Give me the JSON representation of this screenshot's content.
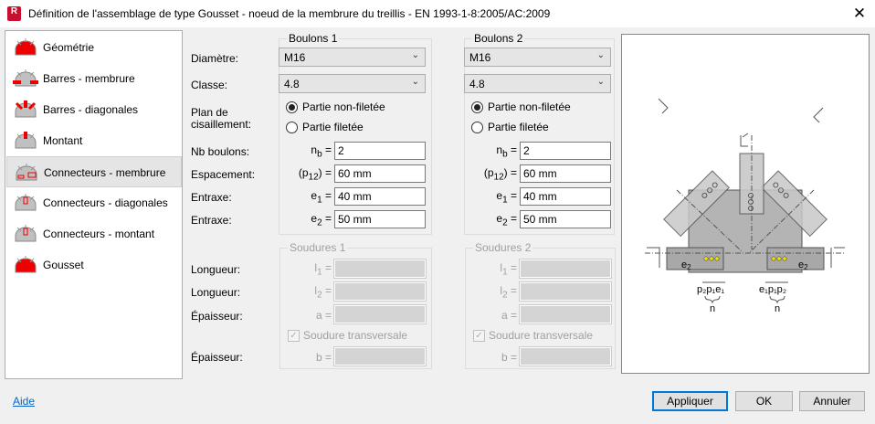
{
  "window": {
    "title": "Définition de l'assemblage de type Gousset - noeud de la membrure du treillis - EN 1993-1-8:2005/AC:2009",
    "app_icon_letter": "R",
    "close_label": "✕"
  },
  "nav": {
    "selected_index": 4,
    "items": [
      {
        "label": "Géométrie",
        "icon": "gusset-geometry-icon"
      },
      {
        "label": "Barres - membrure",
        "icon": "chord-bars-icon"
      },
      {
        "label": "Barres - diagonales",
        "icon": "diagonal-bars-icon"
      },
      {
        "label": "Montant",
        "icon": "vertical-member-icon"
      },
      {
        "label": "Connecteurs - membrure",
        "icon": "chord-connectors-icon"
      },
      {
        "label": "Connecteurs - diagonales",
        "icon": "diagonal-connectors-icon"
      },
      {
        "label": "Connecteurs - montant",
        "icon": "vertical-connectors-icon"
      },
      {
        "label": "Gousset",
        "icon": "gusset-plate-icon"
      }
    ]
  },
  "labels": {
    "diametre": "Diamètre:",
    "classe": "Classe:",
    "plan": "Plan de",
    "cisaillement": "cisaillement:",
    "nb": "Nb boulons:",
    "espacement": "Espacement:",
    "entraxe1": "Entraxe:",
    "entraxe2": "Entraxe:",
    "longueur1": "Longueur:",
    "longueur2": "Longueur:",
    "epaisseur1": "Épaisseur:",
    "epaisseur2": "Épaisseur:"
  },
  "bolts": [
    {
      "title": "Boulons 1",
      "diameter": "M16",
      "class": "4.8",
      "shear_options": [
        "Partie non-filetée",
        "Partie filetée"
      ],
      "shear_selected": 0,
      "nb": "2",
      "spacing": "60 mm",
      "e1": "40 mm",
      "e2": "50 mm"
    },
    {
      "title": "Boulons 2",
      "diameter": "M16",
      "class": "4.8",
      "shear_options": [
        "Partie non-filetée",
        "Partie filetée"
      ],
      "shear_selected": 0,
      "nb": "2",
      "spacing": "60 mm",
      "e1": "40 mm",
      "e2": "50 mm"
    }
  ],
  "symbols": {
    "nb": "n",
    "nb_sub": "b",
    "p": "(p",
    "p1": "1",
    ".p": " .p",
    "p2": "2",
    ")": ") =",
    "e": "e",
    "e1": "1",
    "e2": "2",
    "eq": "=",
    "l": "l",
    "a": "a =",
    "b": "b ="
  },
  "welds": [
    {
      "title": "Soudures 1",
      "l1": "",
      "l2": "",
      "a": "",
      "b": "",
      "transverse_label": "Soudure transversale",
      "transverse_checked": true,
      "enabled": false
    },
    {
      "title": "Soudures 2",
      "l1": "",
      "l2": "",
      "a": "",
      "b": "",
      "transverse_label": "Soudure transversale",
      "transverse_checked": true,
      "enabled": false
    }
  ],
  "diagram": {
    "left_e2": "e",
    "left_e2_sub": "2",
    "right_e2": "e",
    "right_e2_sub": "2",
    "left_dims": "p₂p₁e₁",
    "right_dims": "e₁p₁p₂",
    "n": "n"
  },
  "footer": {
    "help": "Aide",
    "apply": "Appliquer",
    "ok": "OK",
    "cancel": "Annuler"
  },
  "colors": {
    "accent": "#c8102e",
    "link": "#0066cc",
    "bolt": "#f5e100",
    "default_button": "#0078d7"
  }
}
